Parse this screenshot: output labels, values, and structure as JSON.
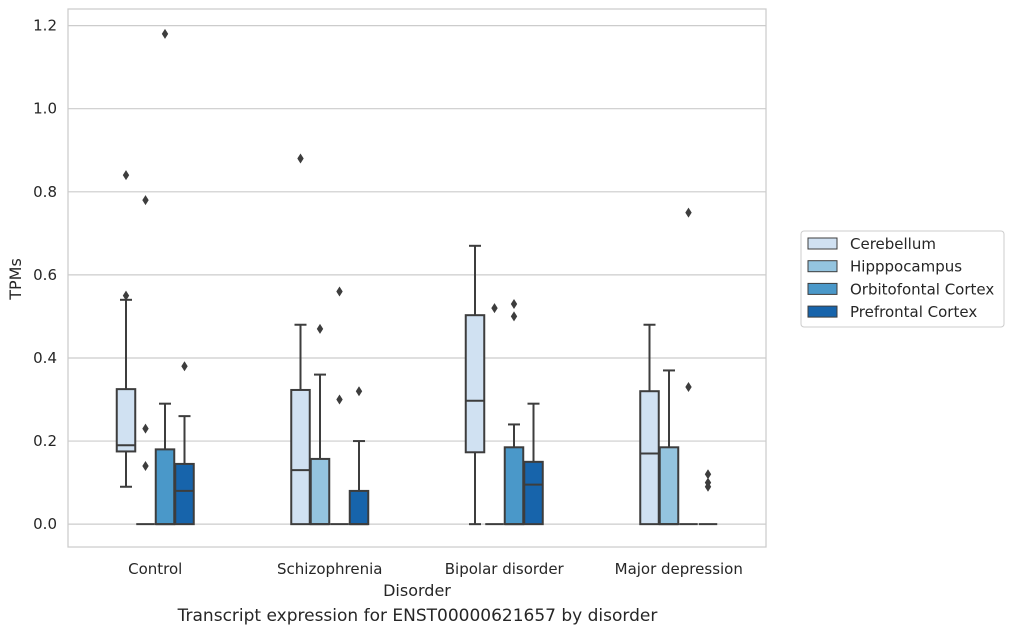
{
  "chart_data": {
    "type": "box",
    "xlabel": "Disorder",
    "ylabel": "TPMs",
    "caption": "Transcript expression for ENST00000621657 by disorder",
    "categories": [
      "Control",
      "Schizophrenia",
      "Bipolar disorder",
      "Major depression"
    ],
    "ylim": [
      -0.055,
      1.24
    ],
    "yticks": [
      "0.0",
      "0.2",
      "0.4",
      "0.6",
      "0.8",
      "1.0",
      "1.2"
    ],
    "grid": true,
    "legend_position": "right",
    "series": [
      {
        "name": "Cerebellum",
        "color": "#d0e1f2",
        "boxes": [
          {
            "whislo": 0.09,
            "q1": 0.175,
            "med": 0.19,
            "q3": 0.325,
            "whishi": 0.54,
            "fliers": [
              0.84,
              0.55
            ]
          },
          {
            "whislo": 0.0,
            "q1": 0.0,
            "med": 0.13,
            "q3": 0.323,
            "whishi": 0.48,
            "fliers": [
              0.88
            ]
          },
          {
            "whislo": 0.0,
            "q1": 0.173,
            "med": 0.297,
            "q3": 0.503,
            "whishi": 0.67,
            "fliers": []
          },
          {
            "whislo": 0.0,
            "q1": 0.0,
            "med": 0.17,
            "q3": 0.32,
            "whishi": 0.48,
            "fliers": []
          }
        ]
      },
      {
        "name": "Hipppocampus",
        "color": "#94c4df",
        "boxes": [
          {
            "whislo": 0.0,
            "q1": 0.0,
            "med": 0.0,
            "q3": 0.0,
            "whishi": 0.0,
            "fliers": [
              0.78,
              0.23,
              0.14
            ]
          },
          {
            "whislo": 0.0,
            "q1": 0.0,
            "med": 0.0,
            "q3": 0.157,
            "whishi": 0.36,
            "fliers": [
              0.47
            ]
          },
          {
            "whislo": 0.0,
            "q1": 0.0,
            "med": 0.0,
            "q3": 0.0,
            "whishi": 0.0,
            "fliers": [
              0.52
            ]
          },
          {
            "whislo": 0.0,
            "q1": 0.0,
            "med": 0.0,
            "q3": 0.185,
            "whishi": 0.37,
            "fliers": []
          }
        ]
      },
      {
        "name": "Orbitofontal Cortex",
        "color": "#4a98c9",
        "boxes": [
          {
            "whislo": 0.0,
            "q1": 0.0,
            "med": 0.0,
            "q3": 0.18,
            "whishi": 0.29,
            "fliers": [
              1.18
            ]
          },
          {
            "whislo": 0.0,
            "q1": 0.0,
            "med": 0.0,
            "q3": 0.0,
            "whishi": 0.0,
            "fliers": [
              0.56,
              0.3
            ]
          },
          {
            "whislo": 0.0,
            "q1": 0.0,
            "med": 0.0,
            "q3": 0.185,
            "whishi": 0.24,
            "fliers": [
              0.53,
              0.5
            ]
          },
          {
            "whislo": 0.0,
            "q1": 0.0,
            "med": 0.0,
            "q3": 0.0,
            "whishi": 0.0,
            "fliers": [
              0.75,
              0.33
            ]
          }
        ]
      },
      {
        "name": "Prefrontal Cortex",
        "color": "#1764ab",
        "boxes": [
          {
            "whislo": 0.0,
            "q1": 0.0,
            "med": 0.08,
            "q3": 0.145,
            "whishi": 0.26,
            "fliers": [
              0.38
            ]
          },
          {
            "whislo": 0.0,
            "q1": 0.0,
            "med": 0.0,
            "q3": 0.08,
            "whishi": 0.2,
            "fliers": [
              0.32
            ]
          },
          {
            "whislo": 0.0,
            "q1": 0.0,
            "med": 0.095,
            "q3": 0.15,
            "whishi": 0.29,
            "fliers": []
          },
          {
            "whislo": 0.0,
            "q1": 0.0,
            "med": 0.0,
            "q3": 0.0,
            "whishi": 0.0,
            "fliers": [
              0.12,
              0.1,
              0.09
            ]
          }
        ]
      }
    ]
  }
}
